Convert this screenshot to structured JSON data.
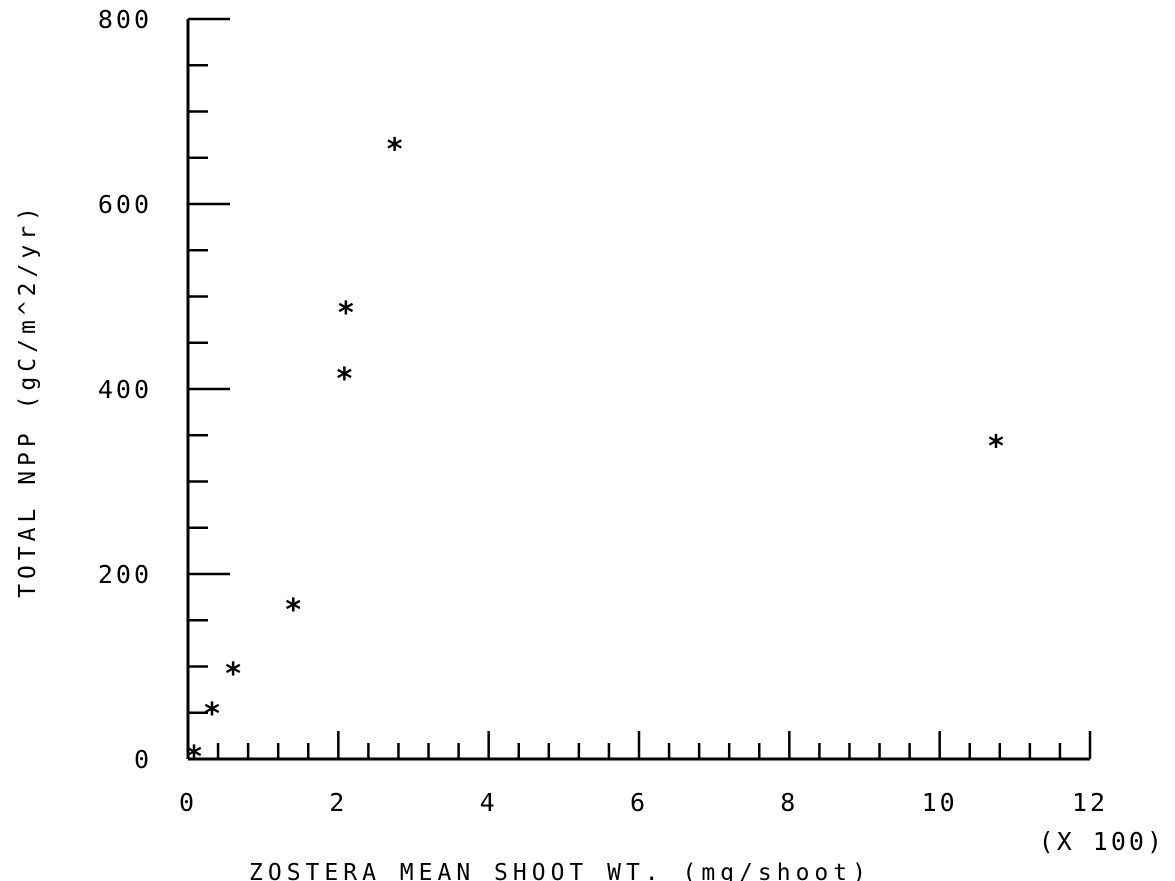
{
  "chart_data": {
    "type": "scatter",
    "xlabel": "ZOSTERA MEAN SHOOT WT.  (mg/shoot)",
    "ylabel": "TOTAL NPP  (gC/m^2/yr)",
    "x_multiplier_label": "(X 100)",
    "xlim": [
      0,
      12
    ],
    "ylim": [
      0,
      800
    ],
    "x_ticks": [
      0,
      2,
      4,
      6,
      8,
      10,
      12
    ],
    "y_ticks": [
      0,
      200,
      400,
      600,
      800
    ],
    "x_minor_step": 0.4,
    "y_minor_step": 50,
    "grid": false,
    "legend": "none",
    "marker": "*",
    "points": [
      {
        "x": 0.08,
        "y": 3
      },
      {
        "x": 0.32,
        "y": 50
      },
      {
        "x": 0.6,
        "y": 93
      },
      {
        "x": 1.4,
        "y": 162
      },
      {
        "x": 2.08,
        "y": 412
      },
      {
        "x": 2.1,
        "y": 483
      },
      {
        "x": 2.75,
        "y": 660
      },
      {
        "x": 10.75,
        "y": 339
      }
    ]
  }
}
